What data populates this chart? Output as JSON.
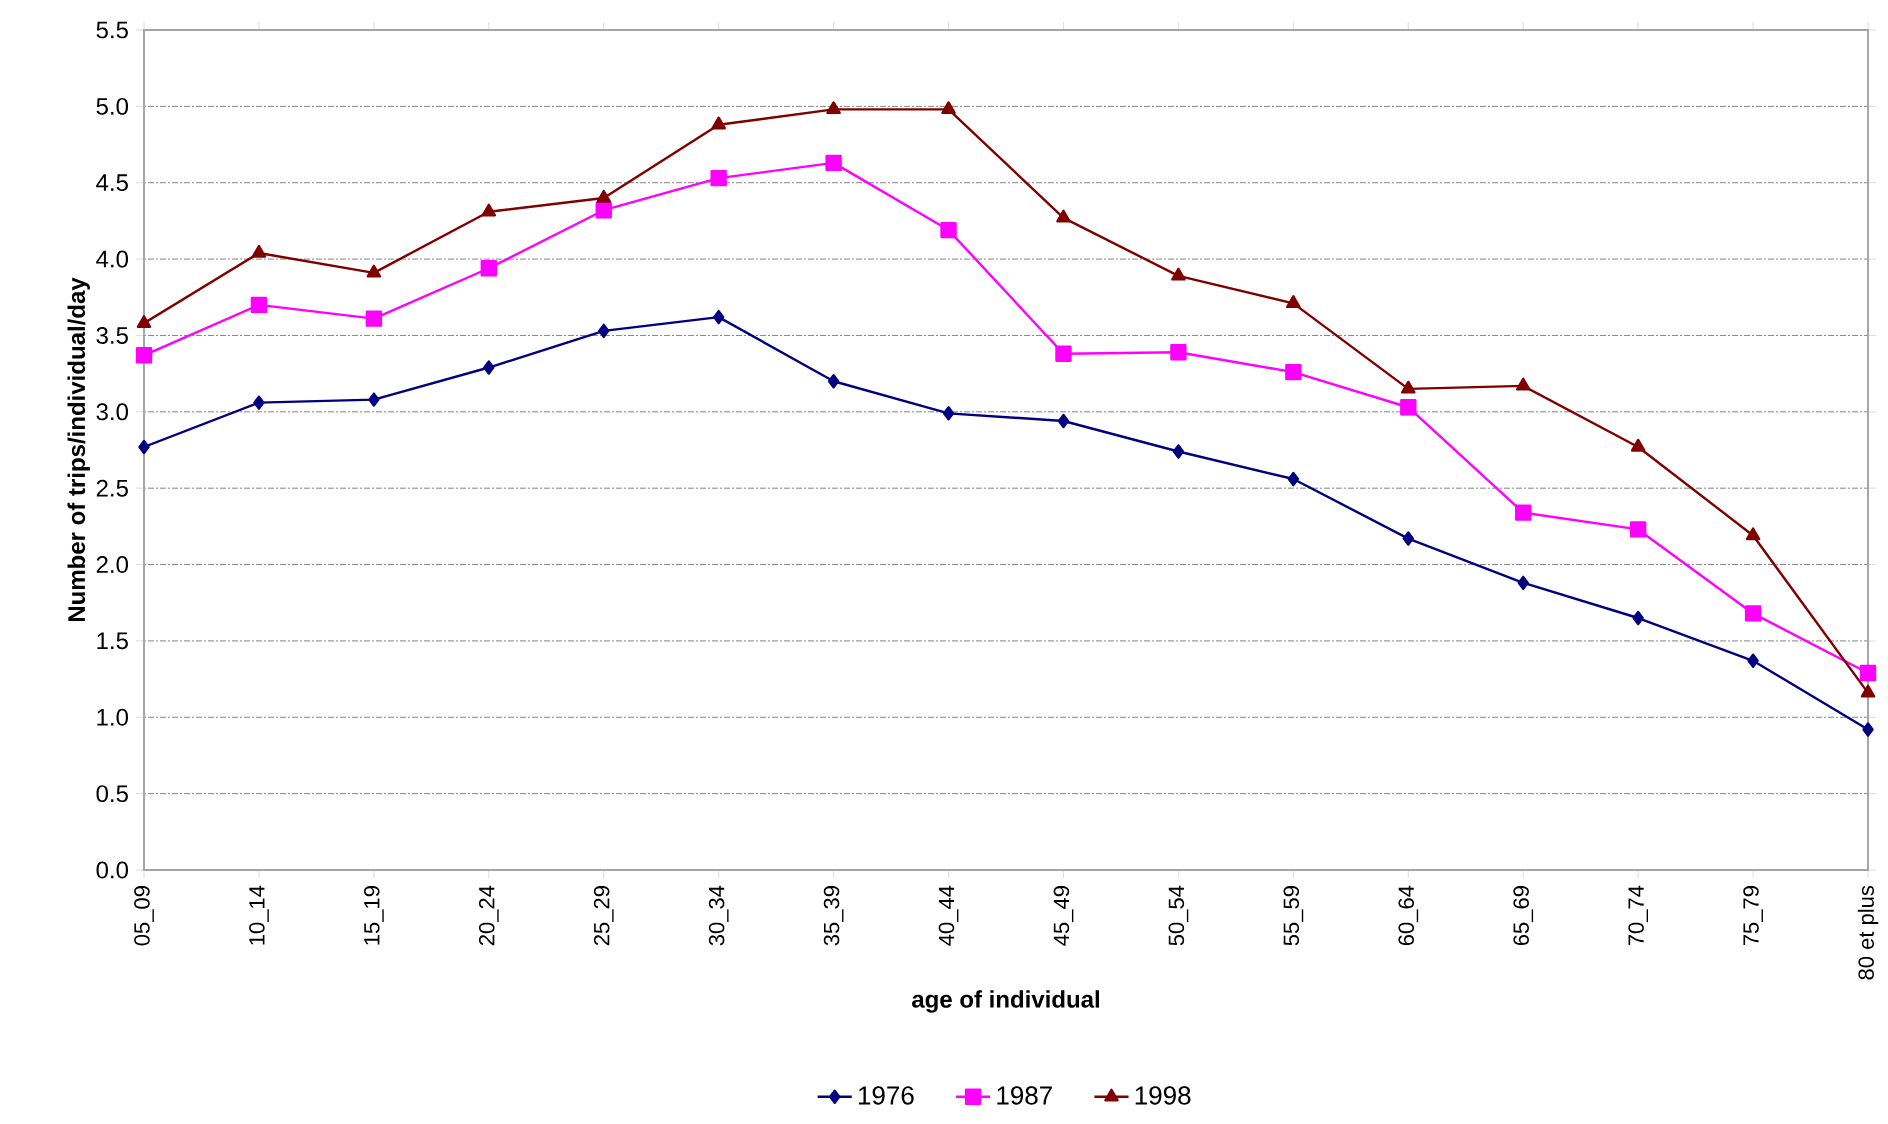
{
  "chart_data": {
    "type": "line",
    "xlabel": "age of individual",
    "ylabel": "Number of trips/individual/day",
    "categories": [
      "05_09",
      "10_14",
      "15_19",
      "20_24",
      "25_29",
      "30_34",
      "35_39",
      "40_44",
      "45_49",
      "50_54",
      "55_59",
      "60_64",
      "65_69",
      "70_74",
      "75_79",
      "80 et plus"
    ],
    "series": [
      {
        "name": "1976",
        "color": "#000080",
        "marker": "diamond",
        "values": [
          2.77,
          3.06,
          3.08,
          3.29,
          3.53,
          3.62,
          3.2,
          2.99,
          2.94,
          2.74,
          2.56,
          2.17,
          1.88,
          1.65,
          1.37,
          0.92
        ]
      },
      {
        "name": "1987",
        "color": "#ff00ff",
        "marker": "square",
        "values": [
          3.37,
          3.7,
          3.61,
          3.94,
          4.32,
          4.53,
          4.63,
          4.19,
          3.38,
          3.39,
          3.26,
          3.03,
          2.34,
          2.23,
          1.68,
          1.29
        ]
      },
      {
        "name": "1998",
        "color": "#800000",
        "marker": "triangle",
        "values": [
          3.58,
          4.04,
          3.91,
          4.31,
          4.4,
          4.88,
          4.98,
          4.98,
          4.27,
          3.89,
          3.71,
          3.15,
          3.17,
          2.77,
          2.19,
          1.16
        ]
      }
    ],
    "ylim": [
      0,
      5.5
    ],
    "yticks": [
      {
        "value": 0,
        "label": "0.0"
      },
      {
        "value": 0.5,
        "label": "0.5"
      },
      {
        "value": 1,
        "label": "1.0"
      },
      {
        "value": 1.5,
        "label": "1.5"
      },
      {
        "value": 2,
        "label": "2.0"
      },
      {
        "value": 2.5,
        "label": "2.5"
      },
      {
        "value": 3,
        "label": "3.0"
      },
      {
        "value": 3.5,
        "label": "3.5"
      },
      {
        "value": 4,
        "label": "4.0"
      },
      {
        "value": 4.5,
        "label": "4.5"
      },
      {
        "value": 5,
        "label": "5.0"
      },
      {
        "value": 5.5,
        "label": "5.5"
      }
    ],
    "grid": "y",
    "legend": "bottom",
    "line_style": "solid"
  }
}
